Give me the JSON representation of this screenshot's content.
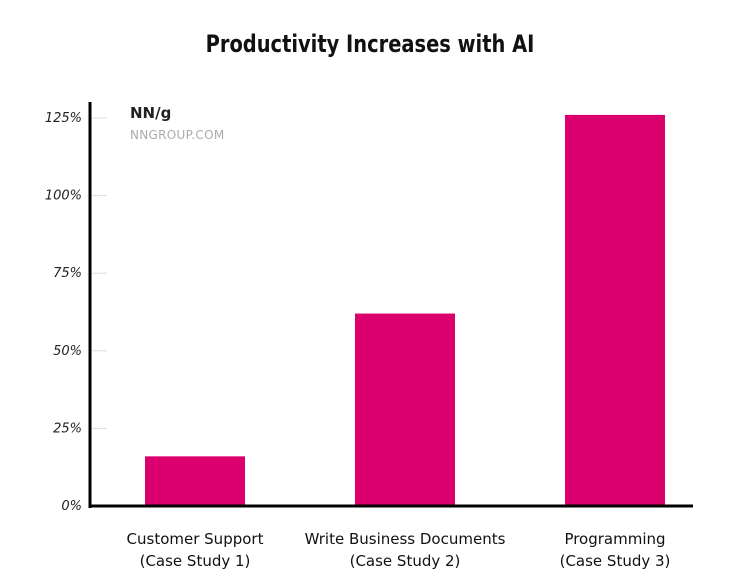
{
  "chart_data": {
    "type": "bar",
    "title": "Productivity Increases with AI",
    "categories": [
      [
        "Customer Support",
        "(Case Study 1)"
      ],
      [
        "Write Business Documents",
        "(Case Study 2)"
      ],
      [
        "Programming",
        "(Case Study 3)"
      ]
    ],
    "values": [
      16,
      62,
      126
    ],
    "unit": "%",
    "ylim": [
      0,
      125
    ],
    "yticks": [
      "0%",
      "25%",
      "50%",
      "75%",
      "100%",
      "125%"
    ],
    "xlabel": "",
    "ylabel": "",
    "grid": false,
    "bar_color": "#dc006e"
  },
  "branding": {
    "logo": "NN/g",
    "url": "NNGROUP.COM"
  }
}
